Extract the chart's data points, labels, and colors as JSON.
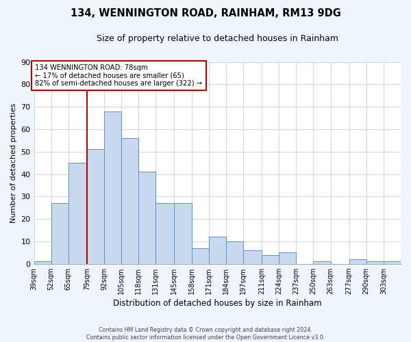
{
  "title": "134, WENNINGTON ROAD, RAINHAM, RM13 9DG",
  "subtitle": "Size of property relative to detached houses in Rainham",
  "xlabel": "Distribution of detached houses by size in Rainham",
  "ylabel": "Number of detached properties",
  "bin_labels": [
    "39sqm",
    "52sqm",
    "65sqm",
    "79sqm",
    "92sqm",
    "105sqm",
    "118sqm",
    "131sqm",
    "145sqm",
    "158sqm",
    "171sqm",
    "184sqm",
    "197sqm",
    "211sqm",
    "224sqm",
    "237sqm",
    "250sqm",
    "263sqm",
    "277sqm",
    "290sqm",
    "303sqm"
  ],
  "bar_values": [
    1,
    27,
    45,
    51,
    68,
    56,
    41,
    27,
    27,
    7,
    12,
    10,
    6,
    4,
    5,
    0,
    1,
    0,
    2,
    1,
    1
  ],
  "bar_color": "#c9d9f0",
  "bar_edge_color": "#5b8fd4",
  "vline_x": 79,
  "vline_color": "#b00000",
  "ylim": [
    0,
    90
  ],
  "yticks": [
    0,
    10,
    20,
    30,
    40,
    50,
    60,
    70,
    80,
    90
  ],
  "annotation_line1": "134 WENNINGTON ROAD: 78sqm",
  "annotation_line2": "← 17% of detached houses are smaller (65)",
  "annotation_line3": "82% of semi-detached houses are larger (322) →",
  "annotation_box_color": "#b00000",
  "footer_line1": "Contains HM Land Registry data © Crown copyright and database right 2024.",
  "footer_line2": "Contains public sector information licensed under the Open Government Licence v3.0.",
  "fig_background_color": "#f0f4fb",
  "plot_background_color": "#ffffff",
  "grid_color": "#d0d8e8",
  "bin_edges": [
    39,
    52,
    65,
    79,
    92,
    105,
    118,
    131,
    145,
    158,
    171,
    184,
    197,
    211,
    224,
    237,
    250,
    263,
    277,
    290,
    303,
    316
  ]
}
